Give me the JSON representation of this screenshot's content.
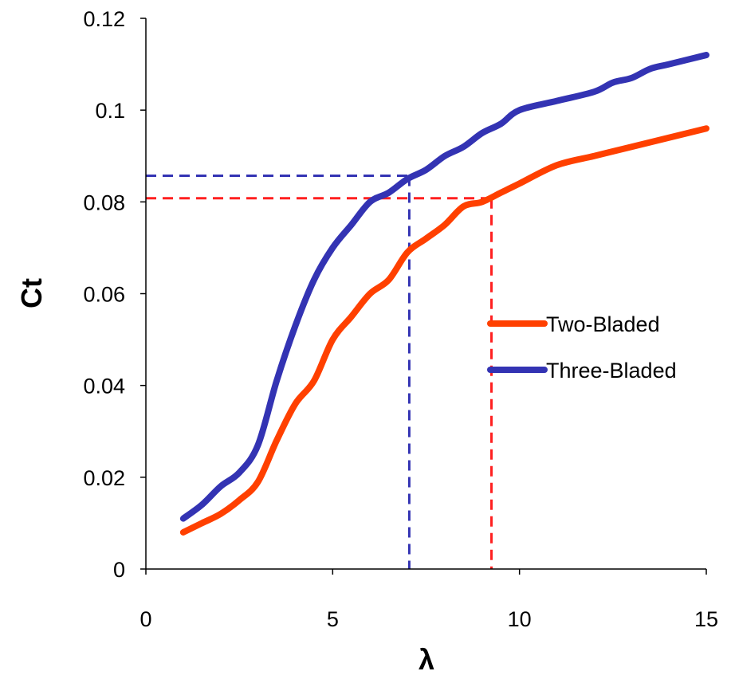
{
  "chart_data": {
    "type": "line",
    "title": "",
    "xlabel": "λ",
    "ylabel": "Ct",
    "xlim": [
      0,
      15
    ],
    "ylim": [
      0,
      0.12
    ],
    "x_ticks": [
      0,
      5,
      10,
      15
    ],
    "x_tick_labels": [
      "0",
      "5",
      "10",
      "15"
    ],
    "y_ticks": [
      0,
      0.02,
      0.04,
      0.06,
      0.08,
      0.1,
      0.12
    ],
    "y_tick_labels": [
      "0",
      "0.02",
      "0.04",
      "0.06",
      "0.08",
      "0.1",
      "0.12"
    ],
    "grid": false,
    "legend_position": "right",
    "series": [
      {
        "name": "Two-Bladed",
        "color": "#ff4000",
        "points": [
          [
            1,
            0.008
          ],
          [
            1.5,
            0.01
          ],
          [
            2,
            0.012
          ],
          [
            2.5,
            0.015
          ],
          [
            3,
            0.019
          ],
          [
            3.5,
            0.028
          ],
          [
            4,
            0.036
          ],
          [
            4.5,
            0.041
          ],
          [
            5,
            0.05
          ],
          [
            5.5,
            0.055
          ],
          [
            6,
            0.06
          ],
          [
            6.5,
            0.063
          ],
          [
            7,
            0.069
          ],
          [
            7.5,
            0.072
          ],
          [
            8,
            0.075
          ],
          [
            8.5,
            0.079
          ],
          [
            9,
            0.08
          ],
          [
            9.5,
            0.082
          ],
          [
            10,
            0.084
          ],
          [
            11,
            0.088
          ],
          [
            12,
            0.09
          ],
          [
            13,
            0.092
          ],
          [
            14,
            0.094
          ],
          [
            15,
            0.096
          ]
        ]
      },
      {
        "name": "Three-Bladed",
        "color": "#3333b3",
        "points": [
          [
            1,
            0.011
          ],
          [
            1.5,
            0.014
          ],
          [
            2,
            0.018
          ],
          [
            2.5,
            0.021
          ],
          [
            3,
            0.027
          ],
          [
            3.5,
            0.041
          ],
          [
            4,
            0.053
          ],
          [
            4.5,
            0.063
          ],
          [
            5,
            0.07
          ],
          [
            5.5,
            0.075
          ],
          [
            6,
            0.08
          ],
          [
            6.5,
            0.082
          ],
          [
            7,
            0.085
          ],
          [
            7.5,
            0.087
          ],
          [
            8,
            0.09
          ],
          [
            8.5,
            0.092
          ],
          [
            9,
            0.095
          ],
          [
            9.5,
            0.097
          ],
          [
            10,
            0.1
          ],
          [
            11,
            0.102
          ],
          [
            12,
            0.104
          ],
          [
            12.5,
            0.106
          ],
          [
            13,
            0.107
          ],
          [
            13.5,
            0.109
          ],
          [
            14,
            0.11
          ],
          [
            15,
            0.112
          ]
        ]
      }
    ],
    "reference_lines": [
      {
        "color": "#3333b3",
        "x": 7.05,
        "y": 0.0857
      },
      {
        "color": "#ff2020",
        "x": 9.25,
        "y": 0.0808
      }
    ]
  }
}
